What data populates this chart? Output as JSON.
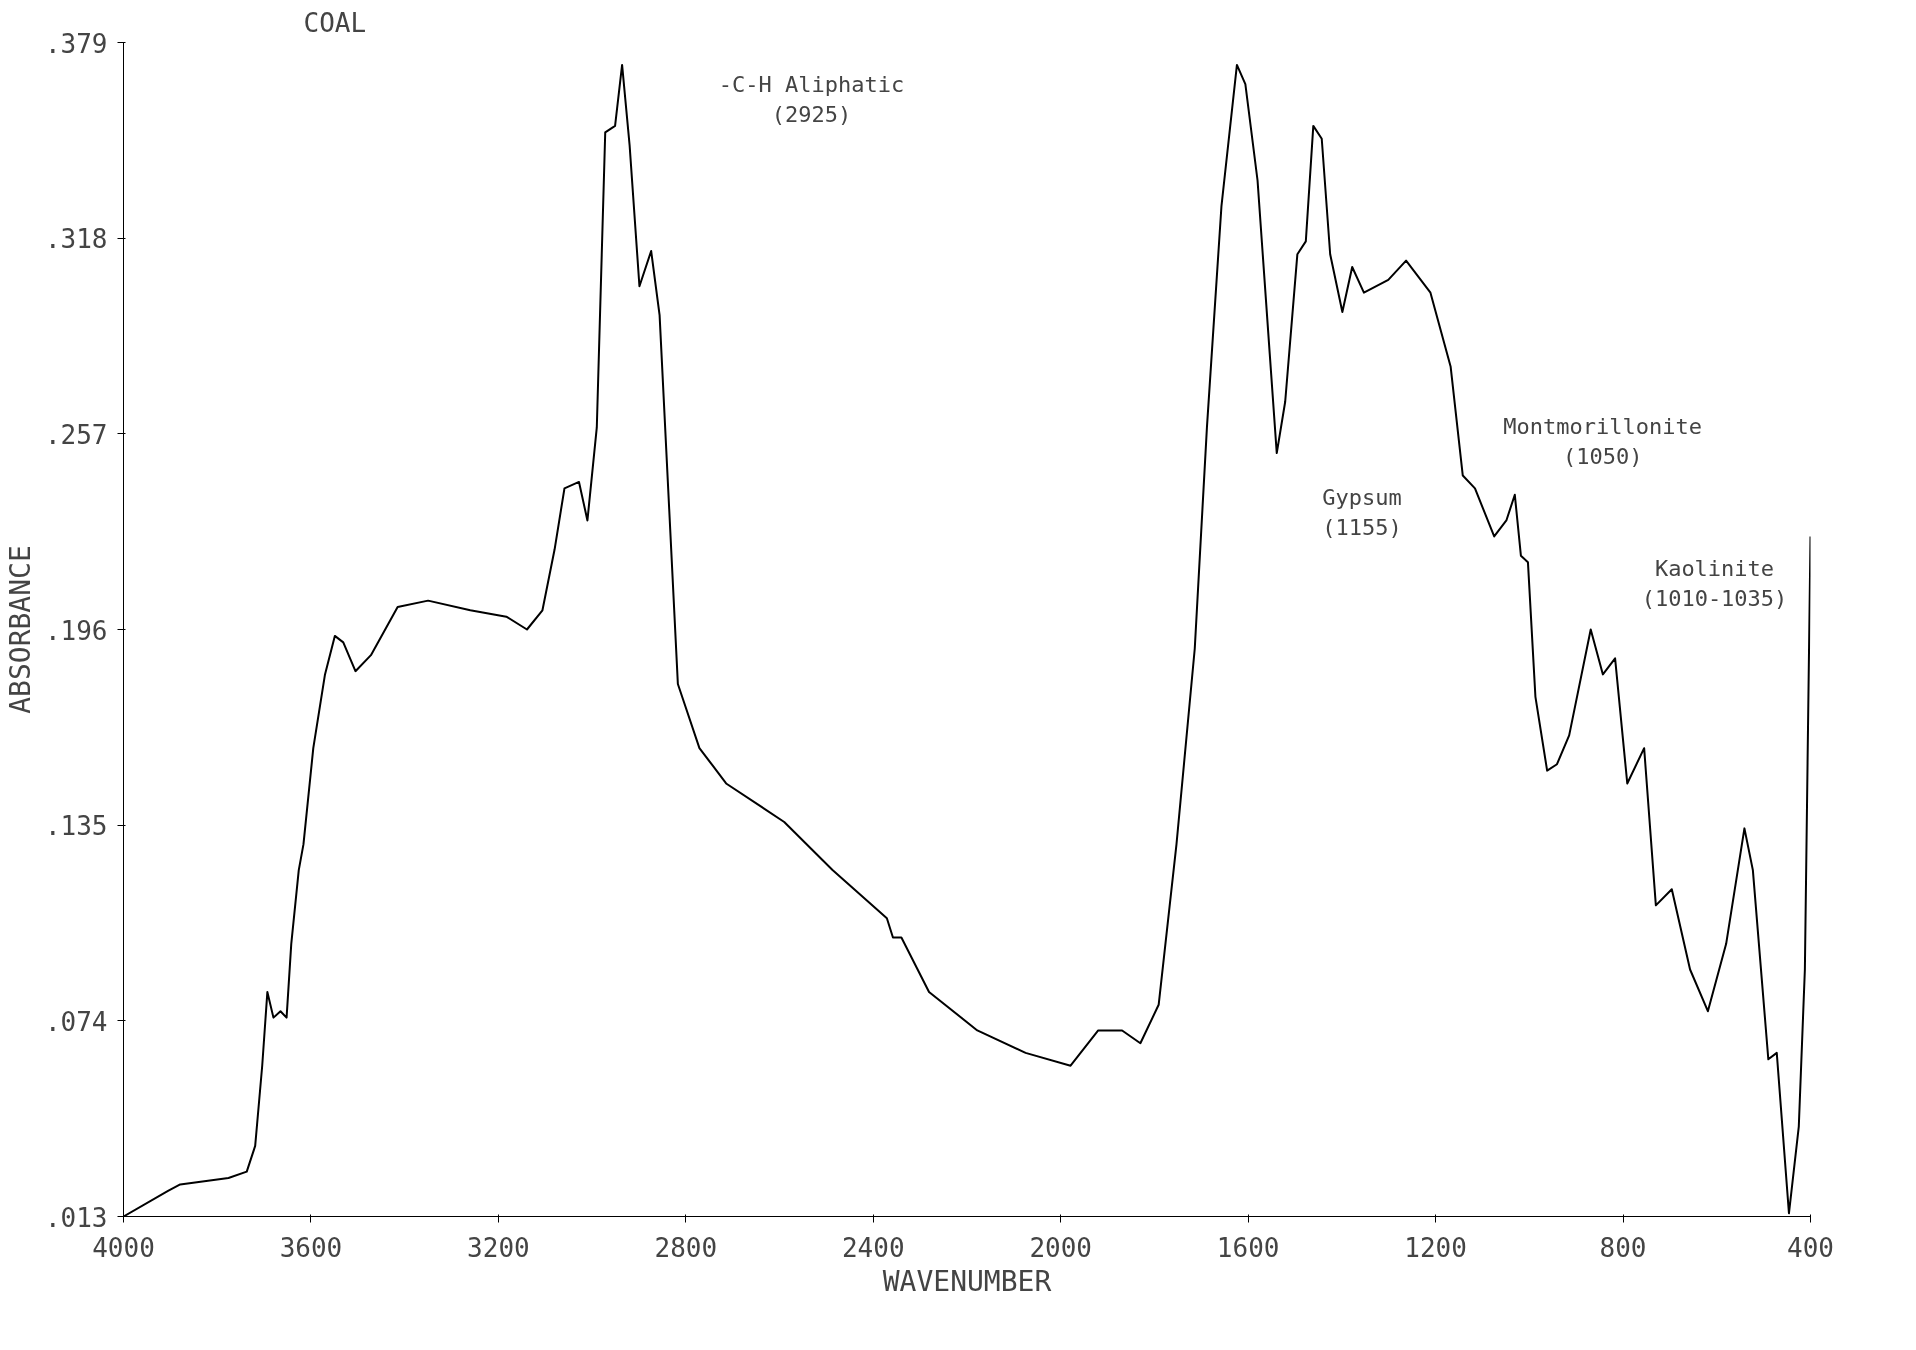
{
  "chart_data": {
    "type": "line",
    "title": "COAL",
    "xlabel": "WAVENUMBER",
    "ylabel": "ABSORBANCE",
    "xlim": [
      4000,
      400
    ],
    "ylim": [
      0.013,
      0.379
    ],
    "xticks": [
      4000,
      3600,
      3200,
      2800,
      2400,
      2000,
      1600,
      1200,
      800,
      400
    ],
    "yticks": [
      {
        "value": 0.013,
        "label": ".013"
      },
      {
        "value": 0.074,
        "label": ".074"
      },
      {
        "value": 0.135,
        "label": ".135"
      },
      {
        "value": 0.196,
        "label": ".196"
      },
      {
        "value": 0.257,
        "label": ".257"
      },
      {
        "value": 0.318,
        "label": ".318"
      },
      {
        "value": 0.379,
        "label": ".379"
      }
    ],
    "grid": false,
    "marker": "none",
    "line_style": "solid",
    "annotations": [
      "-C-H Aliphatic\n(2925)",
      "Gypsum\n(1155)",
      "Montmorillonite\n(1050)",
      "Kaolinite\n(1010-1035)"
    ],
    "series": [
      {
        "color": "#000000",
        "x": [
          4000,
          3905,
          3879,
          3776,
          3737,
          3719,
          3704,
          3693,
          3680,
          3665,
          3652,
          3642,
          3626,
          3616,
          3595,
          3570,
          3549,
          3531,
          3505,
          3472,
          3415,
          3350,
          3260,
          3183,
          3139,
          3106,
          3080,
          3059,
          3028,
          3010,
          2990,
          2972,
          2951,
          2936,
          2920,
          2899,
          2874,
          2856,
          2817,
          2771,
          2745,
          2714,
          2590,
          2487,
          2371,
          2358,
          2340,
          2281,
          2178,
          2075,
          1979,
          1920,
          1869,
          1830,
          1791,
          1753,
          1714,
          1688,
          1657,
          1624,
          1606,
          1580,
          1554,
          1539,
          1521,
          1495,
          1477,
          1461,
          1443,
          1425,
          1399,
          1378,
          1353,
          1301,
          1263,
          1211,
          1168,
          1142,
          1116,
          1075,
          1049,
          1031,
          1018,
          1003,
          987,
          962,
          941,
          915,
          869,
          843,
          817,
          791,
          755,
          730,
          696,
          657,
          619,
          580,
          541,
          523,
          490,
          472,
          446,
          425,
          412,
          400
        ],
        "values": [
          0.013,
          0.021,
          0.023,
          0.025,
          0.027,
          0.035,
          0.06,
          0.083,
          0.075,
          0.077,
          0.075,
          0.098,
          0.121,
          0.129,
          0.159,
          0.182,
          0.194,
          0.192,
          0.183,
          0.188,
          0.203,
          0.205,
          0.202,
          0.2,
          0.196,
          0.202,
          0.221,
          0.24,
          0.242,
          0.23,
          0.259,
          0.351,
          0.353,
          0.372,
          0.347,
          0.303,
          0.314,
          0.294,
          0.179,
          0.159,
          0.154,
          0.148,
          0.136,
          0.121,
          0.106,
          0.1,
          0.1,
          0.083,
          0.071,
          0.064,
          0.06,
          0.071,
          0.071,
          0.067,
          0.079,
          0.129,
          0.19,
          0.259,
          0.328,
          0.372,
          0.366,
          0.336,
          0.282,
          0.251,
          0.267,
          0.313,
          0.317,
          0.353,
          0.349,
          0.313,
          0.295,
          0.309,
          0.301,
          0.305,
          0.311,
          0.301,
          0.278,
          0.244,
          0.24,
          0.225,
          0.23,
          0.238,
          0.219,
          0.217,
          0.175,
          0.152,
          0.154,
          0.163,
          0.196,
          0.182,
          0.187,
          0.148,
          0.159,
          0.11,
          0.115,
          0.09,
          0.077,
          0.098,
          0.134,
          0.121,
          0.062,
          0.064,
          0.014,
          0.041,
          0.09,
          0.225
        ]
      }
    ]
  }
}
